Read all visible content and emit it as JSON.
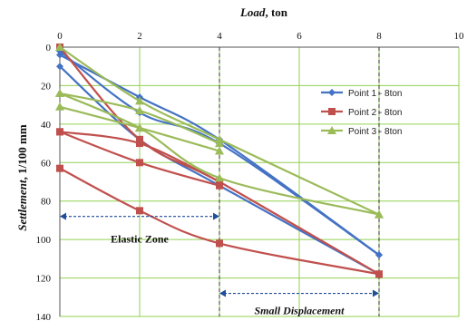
{
  "chart_data": {
    "type": "line",
    "title": "",
    "xlabel_italic": "Load",
    "xlabel_rest": ", ton",
    "ylabel_italic": "Settlement",
    "ylabel_rest": ", 1/100 mm",
    "x_axis_position": "top",
    "xlim": [
      0,
      10
    ],
    "ylim": [
      0,
      140
    ],
    "y_reversed": true,
    "xticks": [
      "0",
      "2",
      "4",
      "6",
      "8",
      "10"
    ],
    "yticks": [
      "0",
      "20",
      "40",
      "60",
      "80",
      "100",
      "120",
      "140"
    ],
    "grid": true,
    "grid_color": "#92d050",
    "legend_position": "right",
    "series": [
      {
        "name": "Point 1 - 8ton",
        "color": "#4472c4",
        "marker": "diamond",
        "segments": [
          [
            [
              0,
              4
            ],
            [
              2,
              26
            ],
            [
              4,
              48
            ],
            [
              8,
              108
            ]
          ],
          [
            [
              8,
              108
            ],
            [
              4,
              50
            ],
            [
              2,
              34
            ],
            [
              0,
              2
            ]
          ],
          [
            [
              0,
              10
            ],
            [
              2,
              48
            ],
            [
              4,
              72
            ],
            [
              8,
              118
            ]
          ]
        ]
      },
      {
        "name": "Point 2 - 8ton",
        "color": "#c0504d",
        "marker": "square",
        "segments": [
          [
            [
              0,
              0
            ],
            [
              2,
              48
            ],
            [
              4,
              70
            ],
            [
              8,
              118
            ]
          ],
          [
            [
              0,
              44
            ],
            [
              2,
              50
            ],
            [
              4,
              70
            ]
          ],
          [
            [
              0,
              44
            ],
            [
              2,
              60
            ],
            [
              4,
              72
            ]
          ],
          [
            [
              0,
              63
            ],
            [
              2,
              85
            ],
            [
              4,
              102
            ],
            [
              8,
              118
            ]
          ]
        ]
      },
      {
        "name": "Point 3 - 8ton",
        "color": "#9bbb59",
        "marker": "triangle",
        "segments": [
          [
            [
              0,
              0
            ],
            [
              2,
              28
            ],
            [
              4,
              48
            ],
            [
              8,
              87
            ]
          ],
          [
            [
              0,
              24
            ],
            [
              2,
              33
            ],
            [
              4,
              50
            ]
          ],
          [
            [
              0,
              31
            ],
            [
              2,
              42
            ],
            [
              4,
              54
            ]
          ],
          [
            [
              0,
              24
            ],
            [
              2,
              42
            ],
            [
              4,
              68
            ],
            [
              8,
              87
            ]
          ]
        ]
      }
    ],
    "annotations": [
      {
        "text": "Elastic Zone",
        "italic": false,
        "x_range": [
          0,
          4
        ],
        "y": 88
      },
      {
        "text": "Small Displacement",
        "italic": true,
        "x_range": [
          4,
          8
        ],
        "y": 128
      }
    ],
    "reference_lines_x": [
      4,
      8
    ]
  }
}
